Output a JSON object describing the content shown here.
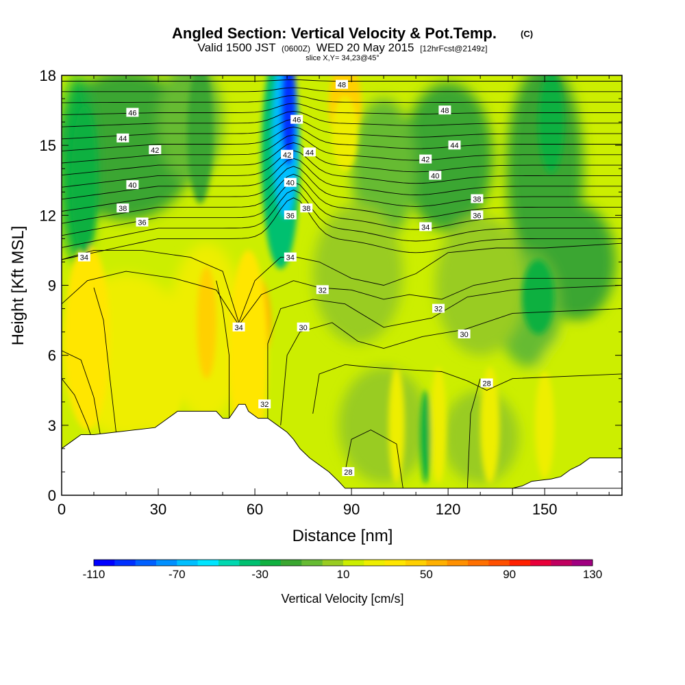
{
  "chart_data": {
    "type": "heatmap",
    "title": "Angled Section: Vertical Velocity & Pot.Temp.",
    "title_tag": "(C)",
    "subtitle": {
      "valid": "Valid 1500 JST",
      "utc": "(0600Z)",
      "date": "WED 20 May 2015",
      "fcst": "[12hrFcst@2149z]"
    },
    "slice_label": "slice X,Y= 34,23@45°",
    "xlabel": "Distance [nm]",
    "ylabel": "Height [Kft MSL]",
    "xlim": [
      0,
      174
    ],
    "ylim": [
      0,
      18
    ],
    "x_ticks": [
      0,
      30,
      60,
      90,
      120,
      150
    ],
    "y_ticks": [
      0,
      3,
      6,
      9,
      12,
      15,
      18
    ],
    "colorbar": {
      "label": "Vertical Velocity [cm/s]",
      "min": -110,
      "max": 130,
      "step": 10,
      "tick_labels": [
        "-110",
        "-70",
        "-30",
        "10",
        "50",
        "90",
        "130"
      ],
      "colors": [
        "#0000ff",
        "#0030ff",
        "#0060ff",
        "#0090ff",
        "#00bfff",
        "#00e5ff",
        "#00d8b0",
        "#00c070",
        "#10b040",
        "#3aa630",
        "#66bb33",
        "#99cc22",
        "#ccee00",
        "#eeee00",
        "#ffe600",
        "#ffd000",
        "#ffb000",
        "#ff9000",
        "#ff7000",
        "#ff5000",
        "#ff2000",
        "#e8003a",
        "#c00060",
        "#a00080",
        "#6a00a0"
      ]
    },
    "velocity_features": [
      {
        "x": 71,
        "z_bottom": 10.0,
        "z_top": 18,
        "value": -100,
        "desc": "downdraft core"
      },
      {
        "x": 6,
        "z_bottom": 5.0,
        "z_top": 7.5,
        "value": 60
      },
      {
        "x": 60,
        "z_bottom": 6.0,
        "z_top": 8.5,
        "value": 50
      },
      {
        "x": 88,
        "z_bottom": 15.5,
        "z_top": 18,
        "value": 40
      },
      {
        "x": 155,
        "z_bottom": 12.0,
        "z_top": 18,
        "value": -30
      },
      {
        "x": 22,
        "z_bottom": 13.0,
        "z_top": 16.0,
        "value": -30
      }
    ],
    "terrain": {
      "x": [
        0,
        3,
        6,
        8,
        10,
        29,
        32,
        35,
        36,
        45,
        48,
        50,
        52,
        55,
        57,
        58,
        61,
        64,
        67,
        70,
        72,
        74,
        77,
        80,
        83,
        86,
        88,
        91,
        174
      ],
      "z": [
        2.0,
        2.3,
        2.6,
        2.6,
        2.6,
        2.9,
        3.2,
        3.5,
        3.6,
        3.6,
        3.6,
        3.3,
        3.3,
        3.9,
        3.9,
        3.6,
        3.3,
        3.3,
        3.0,
        2.7,
        2.4,
        2.0,
        1.6,
        1.3,
        1.0,
        0.6,
        0.3,
        0.3,
        0.3
      ],
      "right_x": [
        140,
        143,
        146,
        152,
        155,
        158,
        161,
        164,
        174
      ],
      "right_z": [
        0.3,
        0.4,
        0.6,
        0.7,
        0.8,
        1.1,
        1.3,
        1.6,
        1.6
      ]
    },
    "contour_labels": [
      {
        "x": 22,
        "z": 16.4,
        "text": "46"
      },
      {
        "x": 19,
        "z": 15.3,
        "text": "44"
      },
      {
        "x": 29,
        "z": 14.8,
        "text": "42"
      },
      {
        "x": 22,
        "z": 13.3,
        "text": "40"
      },
      {
        "x": 19,
        "z": 12.3,
        "text": "38"
      },
      {
        "x": 25,
        "z": 11.7,
        "text": "36"
      },
      {
        "x": 7,
        "z": 10.2,
        "text": "34"
      },
      {
        "x": 55,
        "z": 7.2,
        "text": "34"
      },
      {
        "x": 63,
        "z": 3.9,
        "text": "32"
      },
      {
        "x": 87,
        "z": 17.6,
        "text": "48"
      },
      {
        "x": 73,
        "z": 16.1,
        "text": "46"
      },
      {
        "x": 77,
        "z": 14.7,
        "text": "44"
      },
      {
        "x": 70,
        "z": 14.6,
        "text": "42"
      },
      {
        "x": 71,
        "z": 13.4,
        "text": "40"
      },
      {
        "x": 76,
        "z": 12.3,
        "text": "38"
      },
      {
        "x": 71,
        "z": 12.0,
        "text": "36"
      },
      {
        "x": 71,
        "z": 10.2,
        "text": "34"
      },
      {
        "x": 81,
        "z": 8.8,
        "text": "32"
      },
      {
        "x": 75,
        "z": 7.2,
        "text": "30"
      },
      {
        "x": 89,
        "z": 1.0,
        "text": "28"
      },
      {
        "x": 119,
        "z": 16.5,
        "text": "48"
      },
      {
        "x": 122,
        "z": 15.0,
        "text": "44"
      },
      {
        "x": 113,
        "z": 14.4,
        "text": "42"
      },
      {
        "x": 116,
        "z": 13.7,
        "text": "40"
      },
      {
        "x": 129,
        "z": 12.7,
        "text": "38"
      },
      {
        "x": 129,
        "z": 12.0,
        "text": "36"
      },
      {
        "x": 113,
        "z": 11.5,
        "text": "34"
      },
      {
        "x": 117,
        "z": 8.0,
        "text": "32"
      },
      {
        "x": 125,
        "z": 6.9,
        "text": "30"
      },
      {
        "x": 132,
        "z": 4.8,
        "text": "28"
      }
    ]
  }
}
